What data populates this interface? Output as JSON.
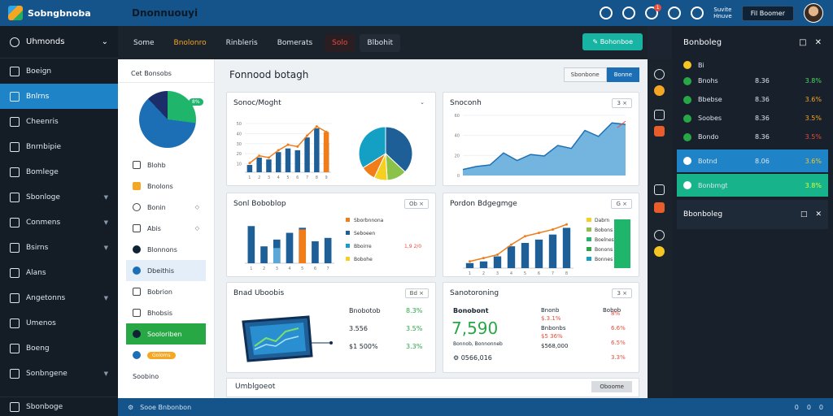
{
  "app": {
    "logo_text": "Sobngbnoba",
    "title": "Dnonnuouyi"
  },
  "topbar": {
    "badge_count": "1",
    "user_line1": "Suvite",
    "user_line2": "Hnuve",
    "user_button": "Fil Boomer"
  },
  "sidebar": {
    "header": "Uhmonds",
    "items": [
      {
        "label": "Boeign",
        "active": false,
        "chevron": false
      },
      {
        "label": "Bnlrns",
        "active": true,
        "chevron": false
      },
      {
        "label": "Cheenris",
        "active": false,
        "chevron": false
      },
      {
        "label": "Bnrnbipie",
        "active": false,
        "chevron": false
      },
      {
        "label": "Bomlege",
        "active": false,
        "chevron": false
      },
      {
        "label": "Sbonloge",
        "active": false,
        "chevron": true
      },
      {
        "label": "Conmens",
        "active": false,
        "chevron": true
      },
      {
        "label": "Bsirns",
        "active": false,
        "chevron": true
      },
      {
        "label": "Alans",
        "active": false,
        "chevron": false
      },
      {
        "label": "Angetonns",
        "active": false,
        "chevron": true
      },
      {
        "label": "Umenos",
        "active": false,
        "chevron": false
      },
      {
        "label": "Boeng",
        "active": false,
        "chevron": false
      },
      {
        "label": "Sonbngene",
        "active": false,
        "chevron": true
      }
    ],
    "footer": "Sbonboge"
  },
  "tabs": [
    {
      "label": "Some",
      "style": "plain"
    },
    {
      "label": "Bnolonro",
      "style": "orange"
    },
    {
      "label": "Rinbleris",
      "style": "plain"
    },
    {
      "label": "Bomerats",
      "style": "plain"
    },
    {
      "label": "Solo",
      "style": "red"
    },
    {
      "label": "Blbohit",
      "style": "dark"
    }
  ],
  "action_button": "Bohonboe",
  "subnav": {
    "title": "Cet Bonsobs",
    "pie_badge": "8%",
    "items": [
      {
        "label": "Blohb",
        "icon": "sq",
        "end": ""
      },
      {
        "label": "Bnolons",
        "icon": "sq-orange",
        "end": ""
      },
      {
        "label": "Bonin",
        "icon": "clock",
        "end": "◇"
      },
      {
        "label": "Abis",
        "icon": "sq",
        "end": "◇"
      },
      {
        "label": "Blonnons",
        "icon": "dot",
        "end": ""
      },
      {
        "label": "Dbeithis",
        "icon": "dot-blue",
        "end": "",
        "style": "blue"
      },
      {
        "label": "Bobrion",
        "icon": "sq",
        "end": ""
      },
      {
        "label": "Bhobsis",
        "icon": "sq",
        "end": ""
      },
      {
        "label": "Sooloriben",
        "icon": "dot",
        "end": "",
        "style": "green"
      },
      {
        "label": "Goloms",
        "icon": "dot-blue",
        "end": "",
        "pill": true
      },
      {
        "label": "Soobino",
        "icon": "",
        "end": ""
      }
    ]
  },
  "content": {
    "title": "Fonnood botagh",
    "segment": [
      "Sbonbone",
      "Bonne"
    ],
    "footer_title": "Umblgoeot",
    "footer_button": "Oboome"
  },
  "cards": {
    "bar1": {
      "title": "Sonoc/Moght",
      "ctrl": "⌄"
    },
    "pie1": {
      "title": "Snoconh",
      "ctrl": "3 ×"
    },
    "bar2": {
      "title": "Sonl Boboblop",
      "ctrl": "Ob ×"
    },
    "line2": {
      "title": "Pordon Bdgegmge",
      "ctrl": "G ×"
    },
    "img": {
      "title": "Bnad Uboobis",
      "ctrl": "Bd ×"
    },
    "kpi": {
      "title": "Sanotoroning",
      "ctrl": "3 ×"
    }
  },
  "chart_data": [
    {
      "type": "bar",
      "title": "Sonoc/Moght",
      "categories": [
        "1",
        "2",
        "3",
        "4",
        "5",
        "6",
        "7",
        "8",
        "9"
      ],
      "series": [
        {
          "values": [
            8,
            16,
            14,
            22,
            26,
            24,
            38,
            48,
            32
          ],
          "color": "#1d5f96"
        },
        {
          "values": [
            0,
            0,
            0,
            0,
            0,
            0,
            0,
            0,
            44
          ],
          "color": "#f07d1a"
        }
      ],
      "line": [
        10,
        18,
        16,
        24,
        30,
        28,
        40,
        50,
        44
      ],
      "ylim": [
        0,
        55
      ],
      "yticks": [
        "50",
        "40",
        "30",
        "20",
        "10"
      ]
    },
    {
      "type": "pie",
      "title": "Snoconh",
      "values": [
        37,
        12,
        8,
        9,
        34
      ],
      "colors": [
        "#1d5f96",
        "#8bc34a",
        "#f5d020",
        "#f07d1a",
        "#14a0c4"
      ]
    },
    {
      "type": "area",
      "title": "Snoconh",
      "x": [
        "1",
        "2",
        "3",
        "4",
        "5",
        "6",
        "7",
        "8",
        "9",
        "10",
        "11",
        "12",
        "13"
      ],
      "values": [
        8,
        12,
        14,
        30,
        20,
        28,
        26,
        40,
        36,
        60,
        52,
        70,
        68
      ],
      "ylim": [
        0,
        80
      ],
      "yticks": [
        "60",
        "40",
        "20",
        "0"
      ]
    },
    {
      "type": "bar",
      "title": "Sonl Boboblop",
      "categories": [
        "1",
        "2",
        "3",
        "4",
        "5",
        "6",
        "7"
      ],
      "series": [
        {
          "values": [
            44,
            20,
            28,
            36,
            42,
            26,
            30
          ],
          "color": "#1d5f96"
        },
        {
          "values": [
            0,
            0,
            18,
            0,
            0,
            0,
            0
          ],
          "color": "#5ba8d8"
        },
        {
          "values": [
            0,
            0,
            0,
            0,
            40,
            0,
            0
          ],
          "color": "#f07d1a"
        }
      ],
      "ylim": [
        0,
        50
      ],
      "legend": [
        {
          "label": "Sborbnnona",
          "color": "#f07d1a",
          "value": ""
        },
        {
          "label": "Seboeen",
          "color": "#1d5f96",
          "value": ""
        },
        {
          "label": "Bboirre",
          "color": "#14a0c4",
          "value": "1,9 2/0"
        },
        {
          "label": "Bobohe",
          "color": "#f5d020",
          "value": ""
        }
      ]
    },
    {
      "type": "bar",
      "title": "Pordon Bdgegmge",
      "categories": [
        "1",
        "2",
        "3",
        "4",
        "5",
        "6",
        "7",
        "8"
      ],
      "series": [
        {
          "values": [
            6,
            8,
            14,
            26,
            30,
            34,
            40,
            48
          ],
          "color": "#1d5f96"
        }
      ],
      "line": [
        8,
        12,
        16,
        28,
        38,
        42,
        46,
        52
      ],
      "ylim": [
        0,
        60
      ],
      "legend": [
        {
          "label": "Dabrn",
          "color": "#f5d020"
        },
        {
          "label": "Bobons",
          "color": "#8bc34a"
        },
        {
          "label": "Boelnes",
          "color": "#1fb56b"
        },
        {
          "label": "Bonons",
          "color": "#27a845"
        },
        {
          "label": "Bonnes",
          "color": "#14a0c4"
        }
      ]
    }
  ],
  "kpi_left": {
    "rows": [
      {
        "label": "Bnobotob",
        "value": "8.3%",
        "tone": "g"
      },
      {
        "label": "3.556",
        "value": "3.5%",
        "tone": "g"
      },
      {
        "label": "$1 500%",
        "value": "3.3%",
        "tone": "g"
      }
    ]
  },
  "kpi_right": {
    "label": "Bonobont",
    "big": "7,590",
    "sub": "Bonnob, Bonnonneb",
    "foot": "0566,016",
    "cols": [
      {
        "label": "Bnonb",
        "value": "$.3.1%",
        "tone": ""
      },
      {
        "label": "Bnbonbs",
        "value": "$5 36%",
        "tone": ""
      },
      {
        "label": "$568,000",
        "value": "",
        "tone": ""
      }
    ],
    "right": [
      {
        "label": "Bobob",
        "value": "8%",
        "tone": "r"
      },
      {
        "label": "",
        "value": "6.6%",
        "tone": "r"
      },
      {
        "label": "",
        "value": "6.5%",
        "tone": "r"
      },
      {
        "label": "",
        "value": "3.3%",
        "tone": "r"
      }
    ]
  },
  "right_panel": {
    "title": "Bonboleg",
    "flag": "Bi",
    "rows": [
      {
        "name": "Bnohs",
        "v1": "8.36",
        "v2": "3.8%",
        "tone": "g",
        "style": ""
      },
      {
        "name": "Bbebse",
        "v1": "8.36",
        "v2": "3.6%",
        "tone": "",
        "style": ""
      },
      {
        "name": "Soobes",
        "v1": "8.36",
        "v2": "3.5%",
        "tone": "",
        "style": ""
      },
      {
        "name": "Bondo",
        "v1": "8.36",
        "v2": "3.5%",
        "tone": "r",
        "style": ""
      },
      {
        "name": "Botnd",
        "v1": "8.06",
        "v2": "3.6%",
        "tone": "",
        "style": "blue"
      },
      {
        "name": "Bonbmgt",
        "v1": "",
        "v2": "3.8%",
        "tone": "",
        "style": "green"
      }
    ],
    "sub_title": "Bbonboleg"
  },
  "statusbar": {
    "text": "Sooe Bnbonbon",
    "right": [
      "0",
      "0",
      "0"
    ]
  }
}
